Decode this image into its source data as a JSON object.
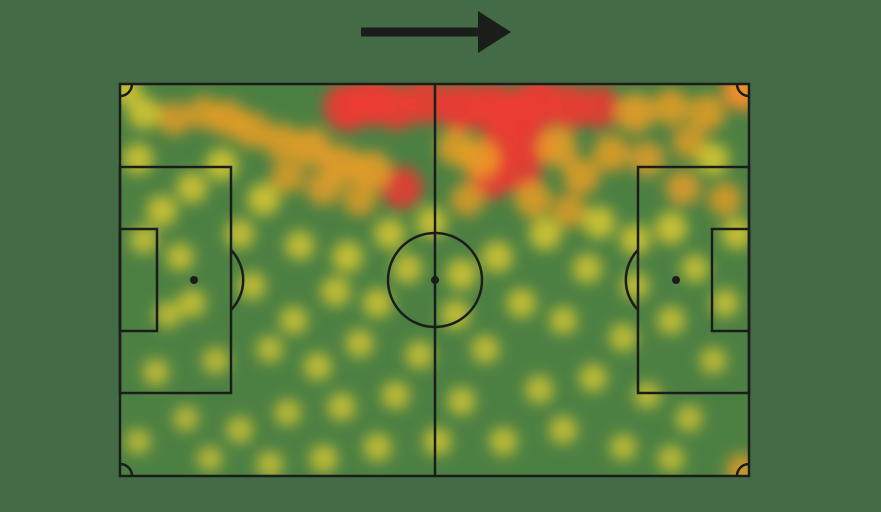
{
  "colors": {
    "background": "#426b46",
    "pitch": "#4c8043",
    "lines": "#1b1d1b",
    "heat_low": "#f4d630",
    "heat_mid": "#f2a024",
    "heat_high": "#ec3a32"
  },
  "attack_direction": "right",
  "chart_data": {
    "type": "heatmap",
    "title": "",
    "xlabel": "",
    "ylabel": "",
    "xlim": [
      0,
      105
    ],
    "ylim": [
      0,
      68
    ],
    "grid": false,
    "legend": "none",
    "x_label": "",
    "intensity_scale": [
      "low",
      "mid",
      "high"
    ],
    "points": [
      {
        "x": 38,
        "y": 64,
        "v": 1.0
      },
      {
        "x": 42,
        "y": 65,
        "v": 1.0
      },
      {
        "x": 46,
        "y": 64,
        "v": 0.9
      },
      {
        "x": 51,
        "y": 65,
        "v": 0.9
      },
      {
        "x": 57,
        "y": 64,
        "v": 1.0
      },
      {
        "x": 62,
        "y": 64,
        "v": 1.0
      },
      {
        "x": 66,
        "y": 63,
        "v": 1.0
      },
      {
        "x": 70,
        "y": 65,
        "v": 1.0
      },
      {
        "x": 75,
        "y": 64,
        "v": 0.9
      },
      {
        "x": 80,
        "y": 64,
        "v": 0.8
      },
      {
        "x": 86,
        "y": 63,
        "v": 0.7
      },
      {
        "x": 92,
        "y": 64,
        "v": 0.6
      },
      {
        "x": 98,
        "y": 63,
        "v": 0.6
      },
      {
        "x": 104,
        "y": 67,
        "v": 0.8
      },
      {
        "x": 64,
        "y": 58,
        "v": 0.9
      },
      {
        "x": 69,
        "y": 58,
        "v": 0.8
      },
      {
        "x": 73,
        "y": 57,
        "v": 0.7
      },
      {
        "x": 62,
        "y": 52,
        "v": 0.9
      },
      {
        "x": 67,
        "y": 53,
        "v": 0.8
      },
      {
        "x": 47,
        "y": 50,
        "v": 0.8
      },
      {
        "x": 42,
        "y": 53,
        "v": 0.7
      },
      {
        "x": 37,
        "y": 54,
        "v": 0.7
      },
      {
        "x": 32,
        "y": 57,
        "v": 0.7
      },
      {
        "x": 27,
        "y": 58,
        "v": 0.6
      },
      {
        "x": 22,
        "y": 60,
        "v": 0.6
      },
      {
        "x": 18,
        "y": 62,
        "v": 0.6
      },
      {
        "x": 14,
        "y": 63,
        "v": 0.5
      },
      {
        "x": 9,
        "y": 62,
        "v": 0.5
      },
      {
        "x": 4,
        "y": 63,
        "v": 0.45
      },
      {
        "x": 56,
        "y": 57,
        "v": 0.6
      },
      {
        "x": 60,
        "y": 55,
        "v": 0.7
      },
      {
        "x": 77,
        "y": 52,
        "v": 0.6
      },
      {
        "x": 82,
        "y": 56,
        "v": 0.6
      },
      {
        "x": 88,
        "y": 55,
        "v": 0.55
      },
      {
        "x": 94,
        "y": 50,
        "v": 0.55
      },
      {
        "x": 101,
        "y": 48,
        "v": 0.5
      },
      {
        "x": 69,
        "y": 48,
        "v": 0.6
      },
      {
        "x": 75,
        "y": 46,
        "v": 0.5
      },
      {
        "x": 80,
        "y": 44,
        "v": 0.45
      },
      {
        "x": 71,
        "y": 42,
        "v": 0.45
      },
      {
        "x": 40,
        "y": 48,
        "v": 0.5
      },
      {
        "x": 34,
        "y": 50,
        "v": 0.55
      },
      {
        "x": 28,
        "y": 52,
        "v": 0.5
      },
      {
        "x": 24,
        "y": 48,
        "v": 0.45
      },
      {
        "x": 17,
        "y": 54,
        "v": 0.45
      },
      {
        "x": 12,
        "y": 50,
        "v": 0.4
      },
      {
        "x": 7,
        "y": 46,
        "v": 0.4
      },
      {
        "x": 3,
        "y": 55,
        "v": 0.4
      },
      {
        "x": 95,
        "y": 58,
        "v": 0.5
      },
      {
        "x": 99,
        "y": 55,
        "v": 0.45
      },
      {
        "x": 58,
        "y": 48,
        "v": 0.5
      },
      {
        "x": 52,
        "y": 44,
        "v": 0.4
      },
      {
        "x": 45,
        "y": 42,
        "v": 0.4
      },
      {
        "x": 86,
        "y": 41,
        "v": 0.4
      },
      {
        "x": 92,
        "y": 43,
        "v": 0.45
      },
      {
        "x": 103,
        "y": 42,
        "v": 0.4
      },
      {
        "x": 63,
        "y": 38,
        "v": 0.4
      },
      {
        "x": 57,
        "y": 35,
        "v": 0.4
      },
      {
        "x": 48,
        "y": 36,
        "v": 0.35
      },
      {
        "x": 38,
        "y": 38,
        "v": 0.4
      },
      {
        "x": 30,
        "y": 40,
        "v": 0.35
      },
      {
        "x": 20,
        "y": 42,
        "v": 0.35
      },
      {
        "x": 10,
        "y": 38,
        "v": 0.3
      },
      {
        "x": 4,
        "y": 41,
        "v": 0.3
      },
      {
        "x": 78,
        "y": 36,
        "v": 0.35
      },
      {
        "x": 86,
        "y": 33,
        "v": 0.3
      },
      {
        "x": 96,
        "y": 36,
        "v": 0.3
      },
      {
        "x": 101,
        "y": 30,
        "v": 0.3
      },
      {
        "x": 67,
        "y": 30,
        "v": 0.35
      },
      {
        "x": 56,
        "y": 28,
        "v": 0.35
      },
      {
        "x": 43,
        "y": 30,
        "v": 0.35
      },
      {
        "x": 36,
        "y": 32,
        "v": 0.35
      },
      {
        "x": 29,
        "y": 27,
        "v": 0.3
      },
      {
        "x": 22,
        "y": 33,
        "v": 0.3
      },
      {
        "x": 12,
        "y": 30,
        "v": 0.3
      },
      {
        "x": 8,
        "y": 28,
        "v": 0.25
      },
      {
        "x": 74,
        "y": 27,
        "v": 0.3
      },
      {
        "x": 84,
        "y": 24,
        "v": 0.3
      },
      {
        "x": 92,
        "y": 27,
        "v": 0.3
      },
      {
        "x": 99,
        "y": 20,
        "v": 0.25
      },
      {
        "x": 61,
        "y": 22,
        "v": 0.3
      },
      {
        "x": 50,
        "y": 21,
        "v": 0.3
      },
      {
        "x": 40,
        "y": 23,
        "v": 0.3
      },
      {
        "x": 33,
        "y": 19,
        "v": 0.3
      },
      {
        "x": 25,
        "y": 22,
        "v": 0.25
      },
      {
        "x": 16,
        "y": 20,
        "v": 0.25
      },
      {
        "x": 6,
        "y": 18,
        "v": 0.25
      },
      {
        "x": 70,
        "y": 15,
        "v": 0.3
      },
      {
        "x": 79,
        "y": 17,
        "v": 0.3
      },
      {
        "x": 88,
        "y": 14,
        "v": 0.25
      },
      {
        "x": 95,
        "y": 10,
        "v": 0.25
      },
      {
        "x": 57,
        "y": 13,
        "v": 0.3
      },
      {
        "x": 46,
        "y": 14,
        "v": 0.3
      },
      {
        "x": 37,
        "y": 12,
        "v": 0.3
      },
      {
        "x": 28,
        "y": 11,
        "v": 0.25
      },
      {
        "x": 20,
        "y": 8,
        "v": 0.25
      },
      {
        "x": 11,
        "y": 10,
        "v": 0.2
      },
      {
        "x": 3,
        "y": 6,
        "v": 0.2
      },
      {
        "x": 64,
        "y": 6,
        "v": 0.3
      },
      {
        "x": 74,
        "y": 8,
        "v": 0.3
      },
      {
        "x": 84,
        "y": 5,
        "v": 0.25
      },
      {
        "x": 92,
        "y": 3,
        "v": 0.25
      },
      {
        "x": 53,
        "y": 6,
        "v": 0.3
      },
      {
        "x": 43,
        "y": 5,
        "v": 0.3
      },
      {
        "x": 34,
        "y": 3,
        "v": 0.3
      },
      {
        "x": 25,
        "y": 2,
        "v": 0.25
      },
      {
        "x": 15,
        "y": 3,
        "v": 0.2
      },
      {
        "x": 104,
        "y": 1,
        "v": 0.5
      },
      {
        "x": 104,
        "y": 67,
        "v": 0.7
      },
      {
        "x": 1,
        "y": 67,
        "v": 0.4
      }
    ]
  }
}
